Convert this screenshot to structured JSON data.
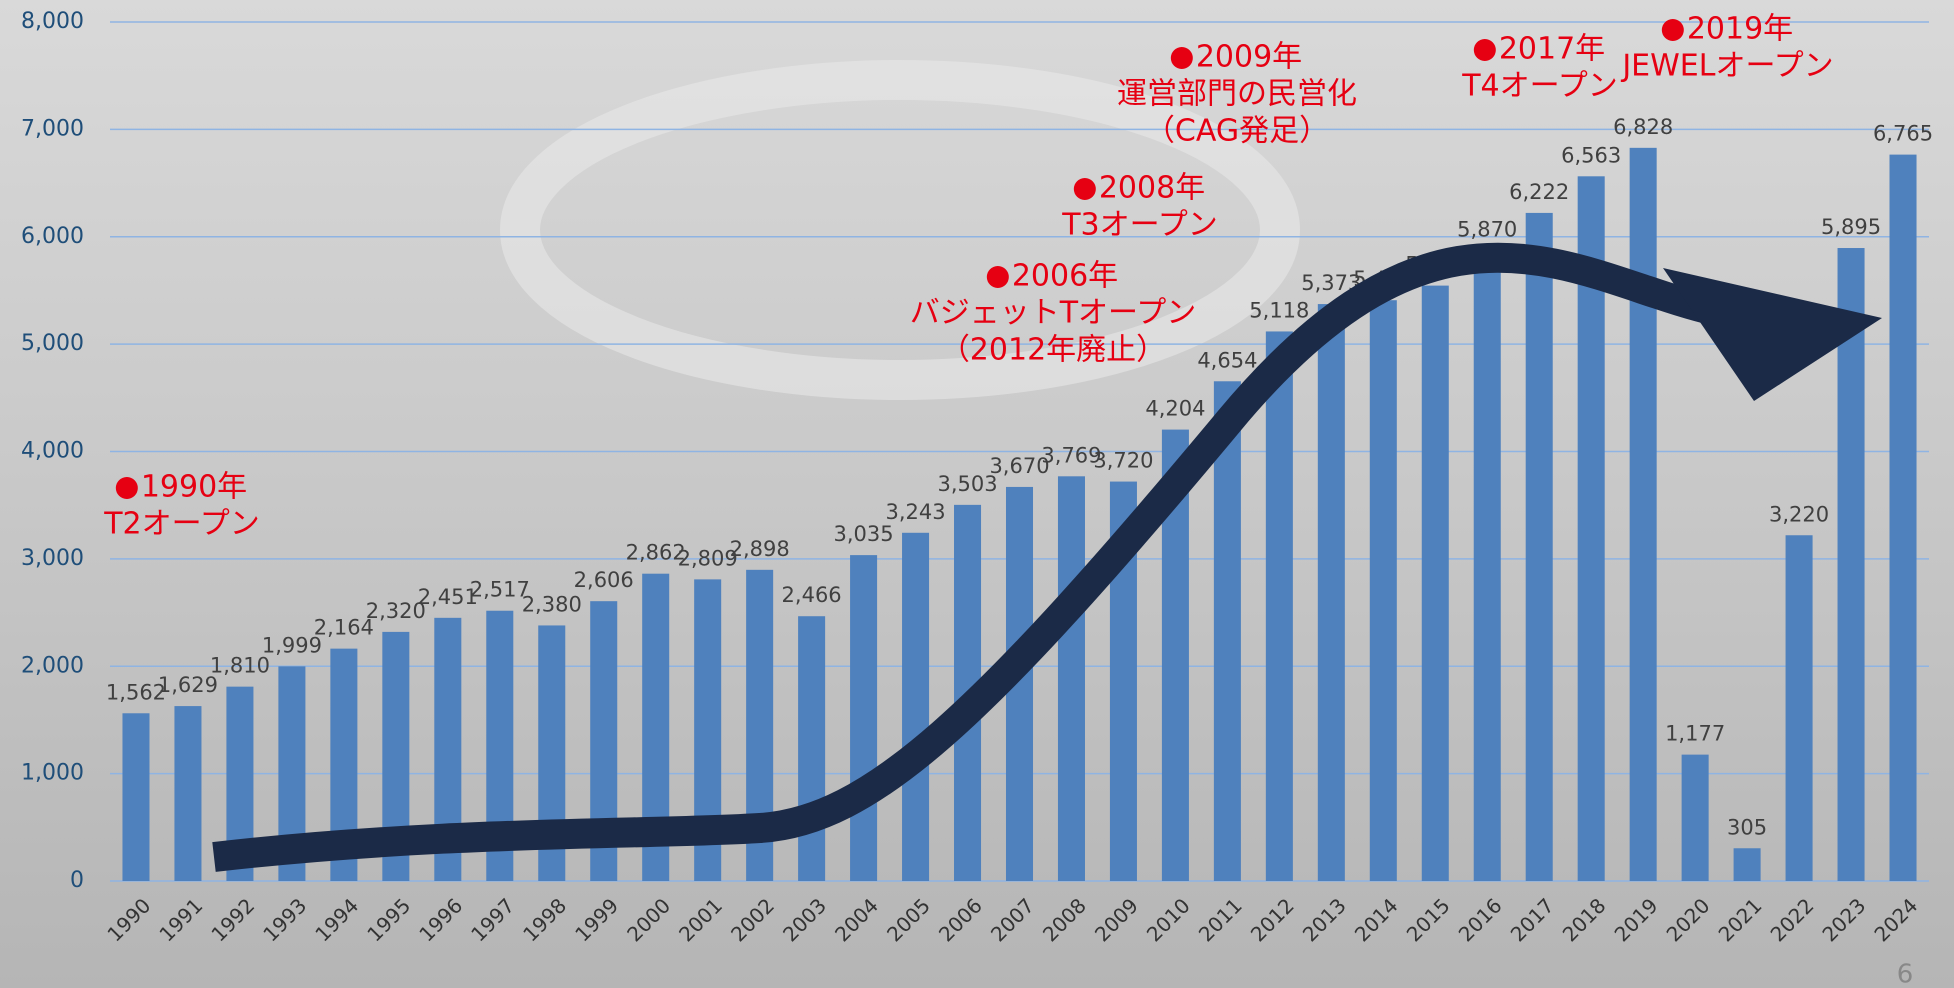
{
  "chart_data": {
    "type": "bar",
    "categories": [
      "1990",
      "1991",
      "1992",
      "1993",
      "1994",
      "1995",
      "1996",
      "1997",
      "1998",
      "1999",
      "2000",
      "2001",
      "2002",
      "2003",
      "2004",
      "2005",
      "2006",
      "2007",
      "2008",
      "2009",
      "2010",
      "2011",
      "2012",
      "2013",
      "2014",
      "2015",
      "2016",
      "2017",
      "2018",
      "2019",
      "2020",
      "2021",
      "2022",
      "2023",
      "2024"
    ],
    "values": [
      1562,
      1629,
      1810,
      1999,
      2164,
      2320,
      2451,
      2517,
      2380,
      2606,
      2862,
      2809,
      2898,
      2466,
      3035,
      3243,
      3503,
      3670,
      3769,
      3720,
      4204,
      4654,
      5118,
      5373,
      5409,
      5545,
      5870,
      6222,
      6563,
      6828,
      1177,
      305,
      3220,
      5895,
      6765
    ],
    "value_labels": [
      "1,562",
      "1,629",
      "1,810",
      "1,999",
      "2,164",
      "2,320",
      "2,451",
      "2,517",
      "2,380",
      "2,606",
      "2,862",
      "2,809",
      "2,898",
      "2,466",
      "3,035",
      "3,243",
      "3,503",
      "3,670",
      "3,769",
      "3,720",
      "4,204",
      "4,654",
      "5,118",
      "5,373",
      "5,409",
      "5,545",
      "5,870",
      "6,222",
      "6,563",
      "6,828",
      "1,177",
      "305",
      "3,220",
      "5,895",
      "6,765"
    ],
    "color": "#4f81bd",
    "ylim": [
      0,
      8000
    ],
    "yticks": [
      0,
      {
        "value": 1000,
        "label": "1,000"
      },
      {
        "value": 2000,
        "label": "2,000"
      },
      {
        "value": 3000,
        "label": "3,000"
      },
      {
        "value": 4000,
        "label": "4,000"
      },
      {
        "value": 5000,
        "label": "5,000"
      },
      {
        "value": 6000,
        "label": "6,000"
      },
      {
        "value": 7000,
        "label": "7,000"
      },
      {
        "value": 8000,
        "label": "8,000"
      }
    ],
    "grid": true,
    "annotations": [
      {
        "lines": [
          "1990年",
          "T2オープン"
        ]
      },
      {
        "lines": [
          "2006年",
          "バジェットTオープン",
          "（2012年廃止）"
        ]
      },
      {
        "lines": [
          "2008年",
          "T3オープン"
        ]
      },
      {
        "lines": [
          "2009年",
          "運営部門の民営化",
          "（CAG発足）"
        ]
      },
      {
        "lines": [
          "2017年",
          "T4オープン"
        ]
      },
      {
        "lines": [
          "2019年",
          "JEWELオープン"
        ]
      }
    ]
  },
  "page_number": "6"
}
